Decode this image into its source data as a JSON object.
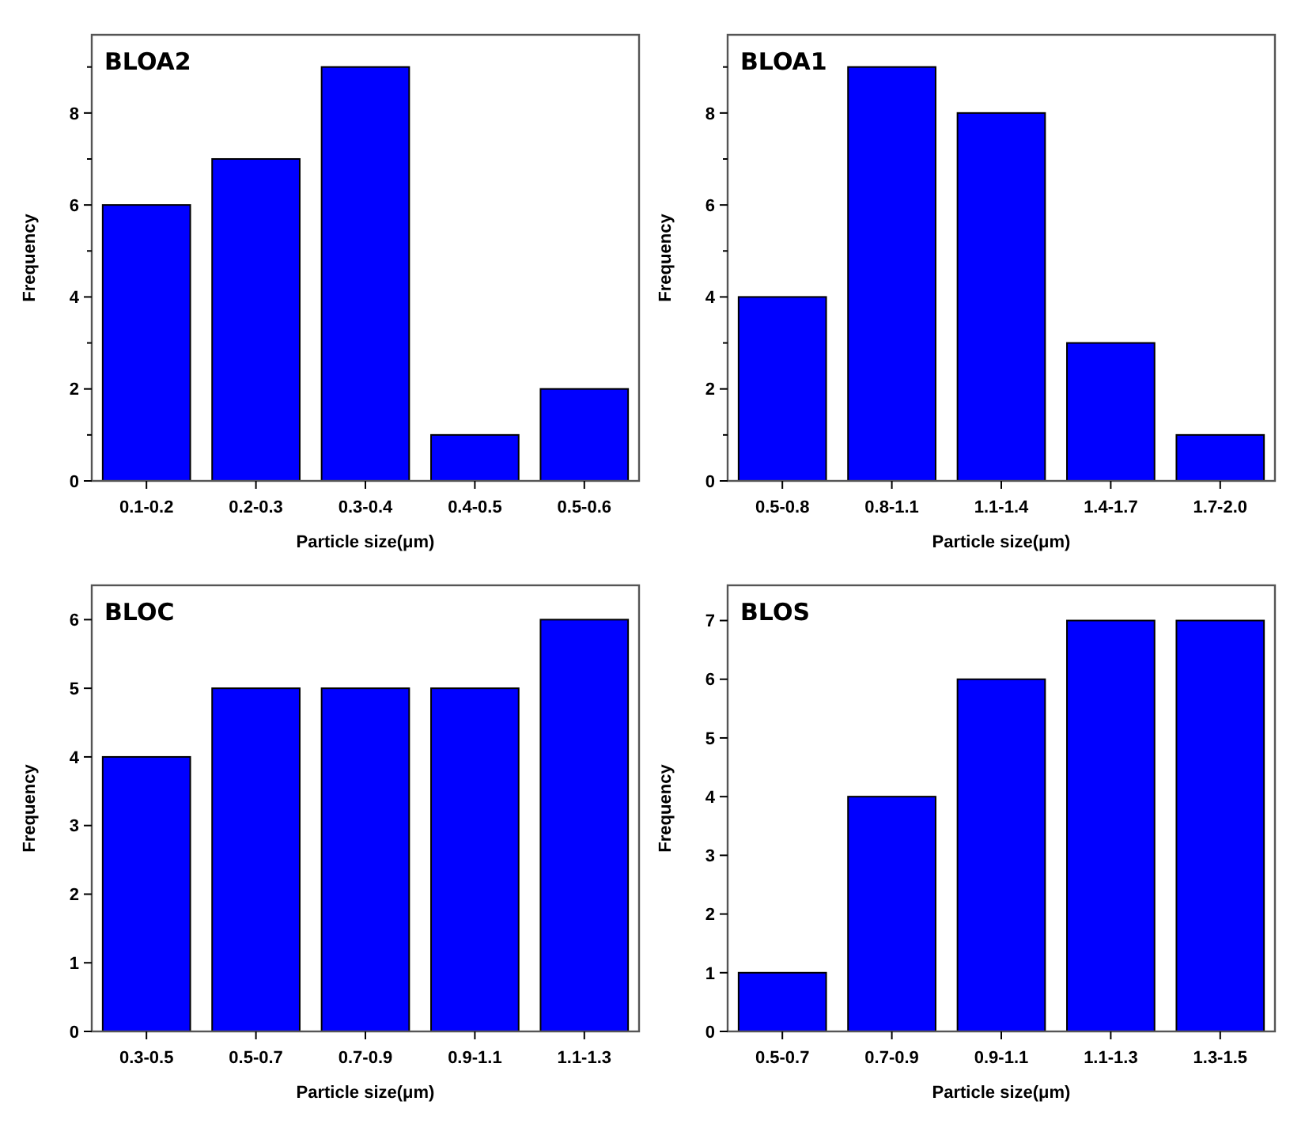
{
  "chart_data": [
    {
      "type": "bar",
      "title": "BLOA2",
      "xlabel": "Particle size(μm)",
      "ylabel": "Frequency",
      "categories": [
        "0.1-0.2",
        "0.2-0.3",
        "0.3-0.4",
        "0.4-0.5",
        "0.5-0.6"
      ],
      "values": [
        6,
        7,
        9,
        1,
        2
      ],
      "color": "#0000ff",
      "ylim": [
        0,
        9.7
      ],
      "yticks": [
        0,
        {
          "value": 1,
          "label": null
        },
        2,
        {
          "value": 3,
          "label": null
        },
        4,
        {
          "value": 5,
          "label": null
        },
        6,
        {
          "value": 7,
          "label": null
        },
        8,
        {
          "value": 9,
          "label": null
        }
      ],
      "grid": false
    },
    {
      "type": "bar",
      "title": "BLOA1",
      "xlabel": "Particle size(μm)",
      "ylabel": "Frequency",
      "categories": [
        "0.5-0.8",
        "0.8-1.1",
        "1.1-1.4",
        "1.4-1.7",
        "1.7-2.0"
      ],
      "values": [
        4,
        9,
        8,
        3,
        1
      ],
      "color": "#0000ff",
      "ylim": [
        0,
        9.7
      ],
      "yticks": [
        0,
        {
          "value": 1,
          "label": null
        },
        2,
        {
          "value": 3,
          "label": null
        },
        4,
        {
          "value": 5,
          "label": null
        },
        6,
        {
          "value": 7,
          "label": null
        },
        8,
        {
          "value": 9,
          "label": null
        }
      ],
      "grid": false
    },
    {
      "type": "bar",
      "title": "BLOC",
      "xlabel": "Particle size(μm)",
      "ylabel": "Frequency",
      "categories": [
        "0.3-0.5",
        "0.5-0.7",
        "0.7-0.9",
        "0.9-1.1",
        "1.1-1.3"
      ],
      "values": [
        4,
        5,
        5,
        5,
        6
      ],
      "color": "#0000ff",
      "ylim": [
        0,
        6.5
      ],
      "yticks": [
        0,
        1,
        2,
        3,
        4,
        5,
        6
      ],
      "grid": false
    },
    {
      "type": "bar",
      "title": "BLOS",
      "xlabel": "Particle size(μm)",
      "ylabel": "Frequency",
      "categories": [
        "0.5-0.7",
        "0.7-0.9",
        "0.9-1.1",
        "1.1-1.3",
        "1.3-1.5"
      ],
      "values": [
        1,
        4,
        6,
        7,
        7
      ],
      "color": "#0000ff",
      "ylim": [
        0,
        7.6
      ],
      "yticks": [
        0,
        1,
        2,
        3,
        4,
        5,
        6,
        7
      ],
      "grid": false
    }
  ]
}
